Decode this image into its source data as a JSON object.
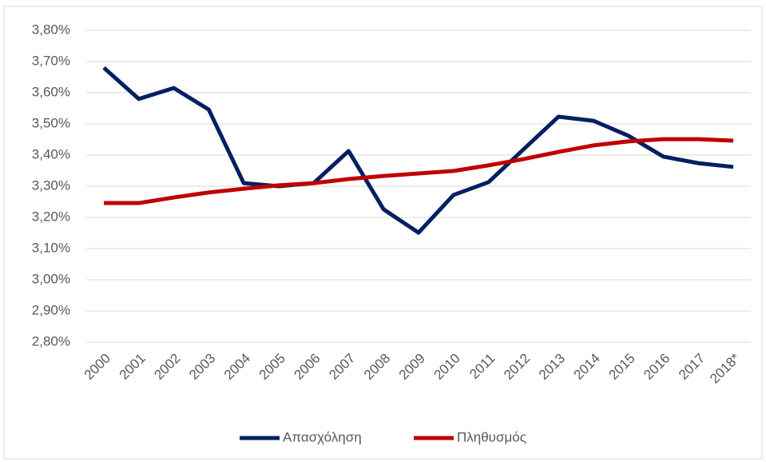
{
  "chart_data": {
    "type": "line",
    "categories": [
      "2000",
      "2001",
      "2002",
      "2003",
      "2004",
      "2005",
      "2006",
      "2007",
      "2008",
      "2009",
      "2010",
      "2011",
      "2012",
      "2013",
      "2014",
      "2015",
      "2016",
      "2017",
      "2018*"
    ],
    "series": [
      {
        "name": "Απασχόληση",
        "color": "#002060",
        "values": [
          3.68,
          3.58,
          3.615,
          3.546,
          3.31,
          3.3,
          3.31,
          3.413,
          3.226,
          3.151,
          3.272,
          3.313,
          3.418,
          3.523,
          3.51,
          3.462,
          3.395,
          3.374,
          3.362
        ]
      },
      {
        "name": "Πληθυσμός",
        "color": "#c00000",
        "values": [
          3.246,
          3.246,
          3.264,
          3.28,
          3.292,
          3.303,
          3.31,
          3.323,
          3.333,
          3.341,
          3.349,
          3.367,
          3.387,
          3.41,
          3.431,
          3.444,
          3.451,
          3.451,
          3.446
        ]
      }
    ],
    "ylim": [
      2.8,
      3.8
    ],
    "yticks": [
      {
        "value": 2.8,
        "label": "2,80%"
      },
      {
        "value": 2.9,
        "label": "2,90%"
      },
      {
        "value": 3.0,
        "label": "3,00%"
      },
      {
        "value": 3.1,
        "label": "3,10%"
      },
      {
        "value": 3.2,
        "label": "3,20%"
      },
      {
        "value": 3.3,
        "label": "3,30%"
      },
      {
        "value": 3.4,
        "label": "3,40%"
      },
      {
        "value": 3.5,
        "label": "3,50%"
      },
      {
        "value": 3.6,
        "label": "3,60%"
      },
      {
        "value": 3.7,
        "label": "3,70%"
      },
      {
        "value": 3.8,
        "label": "3,80%"
      }
    ],
    "grid": true,
    "legend": "bottom"
  }
}
